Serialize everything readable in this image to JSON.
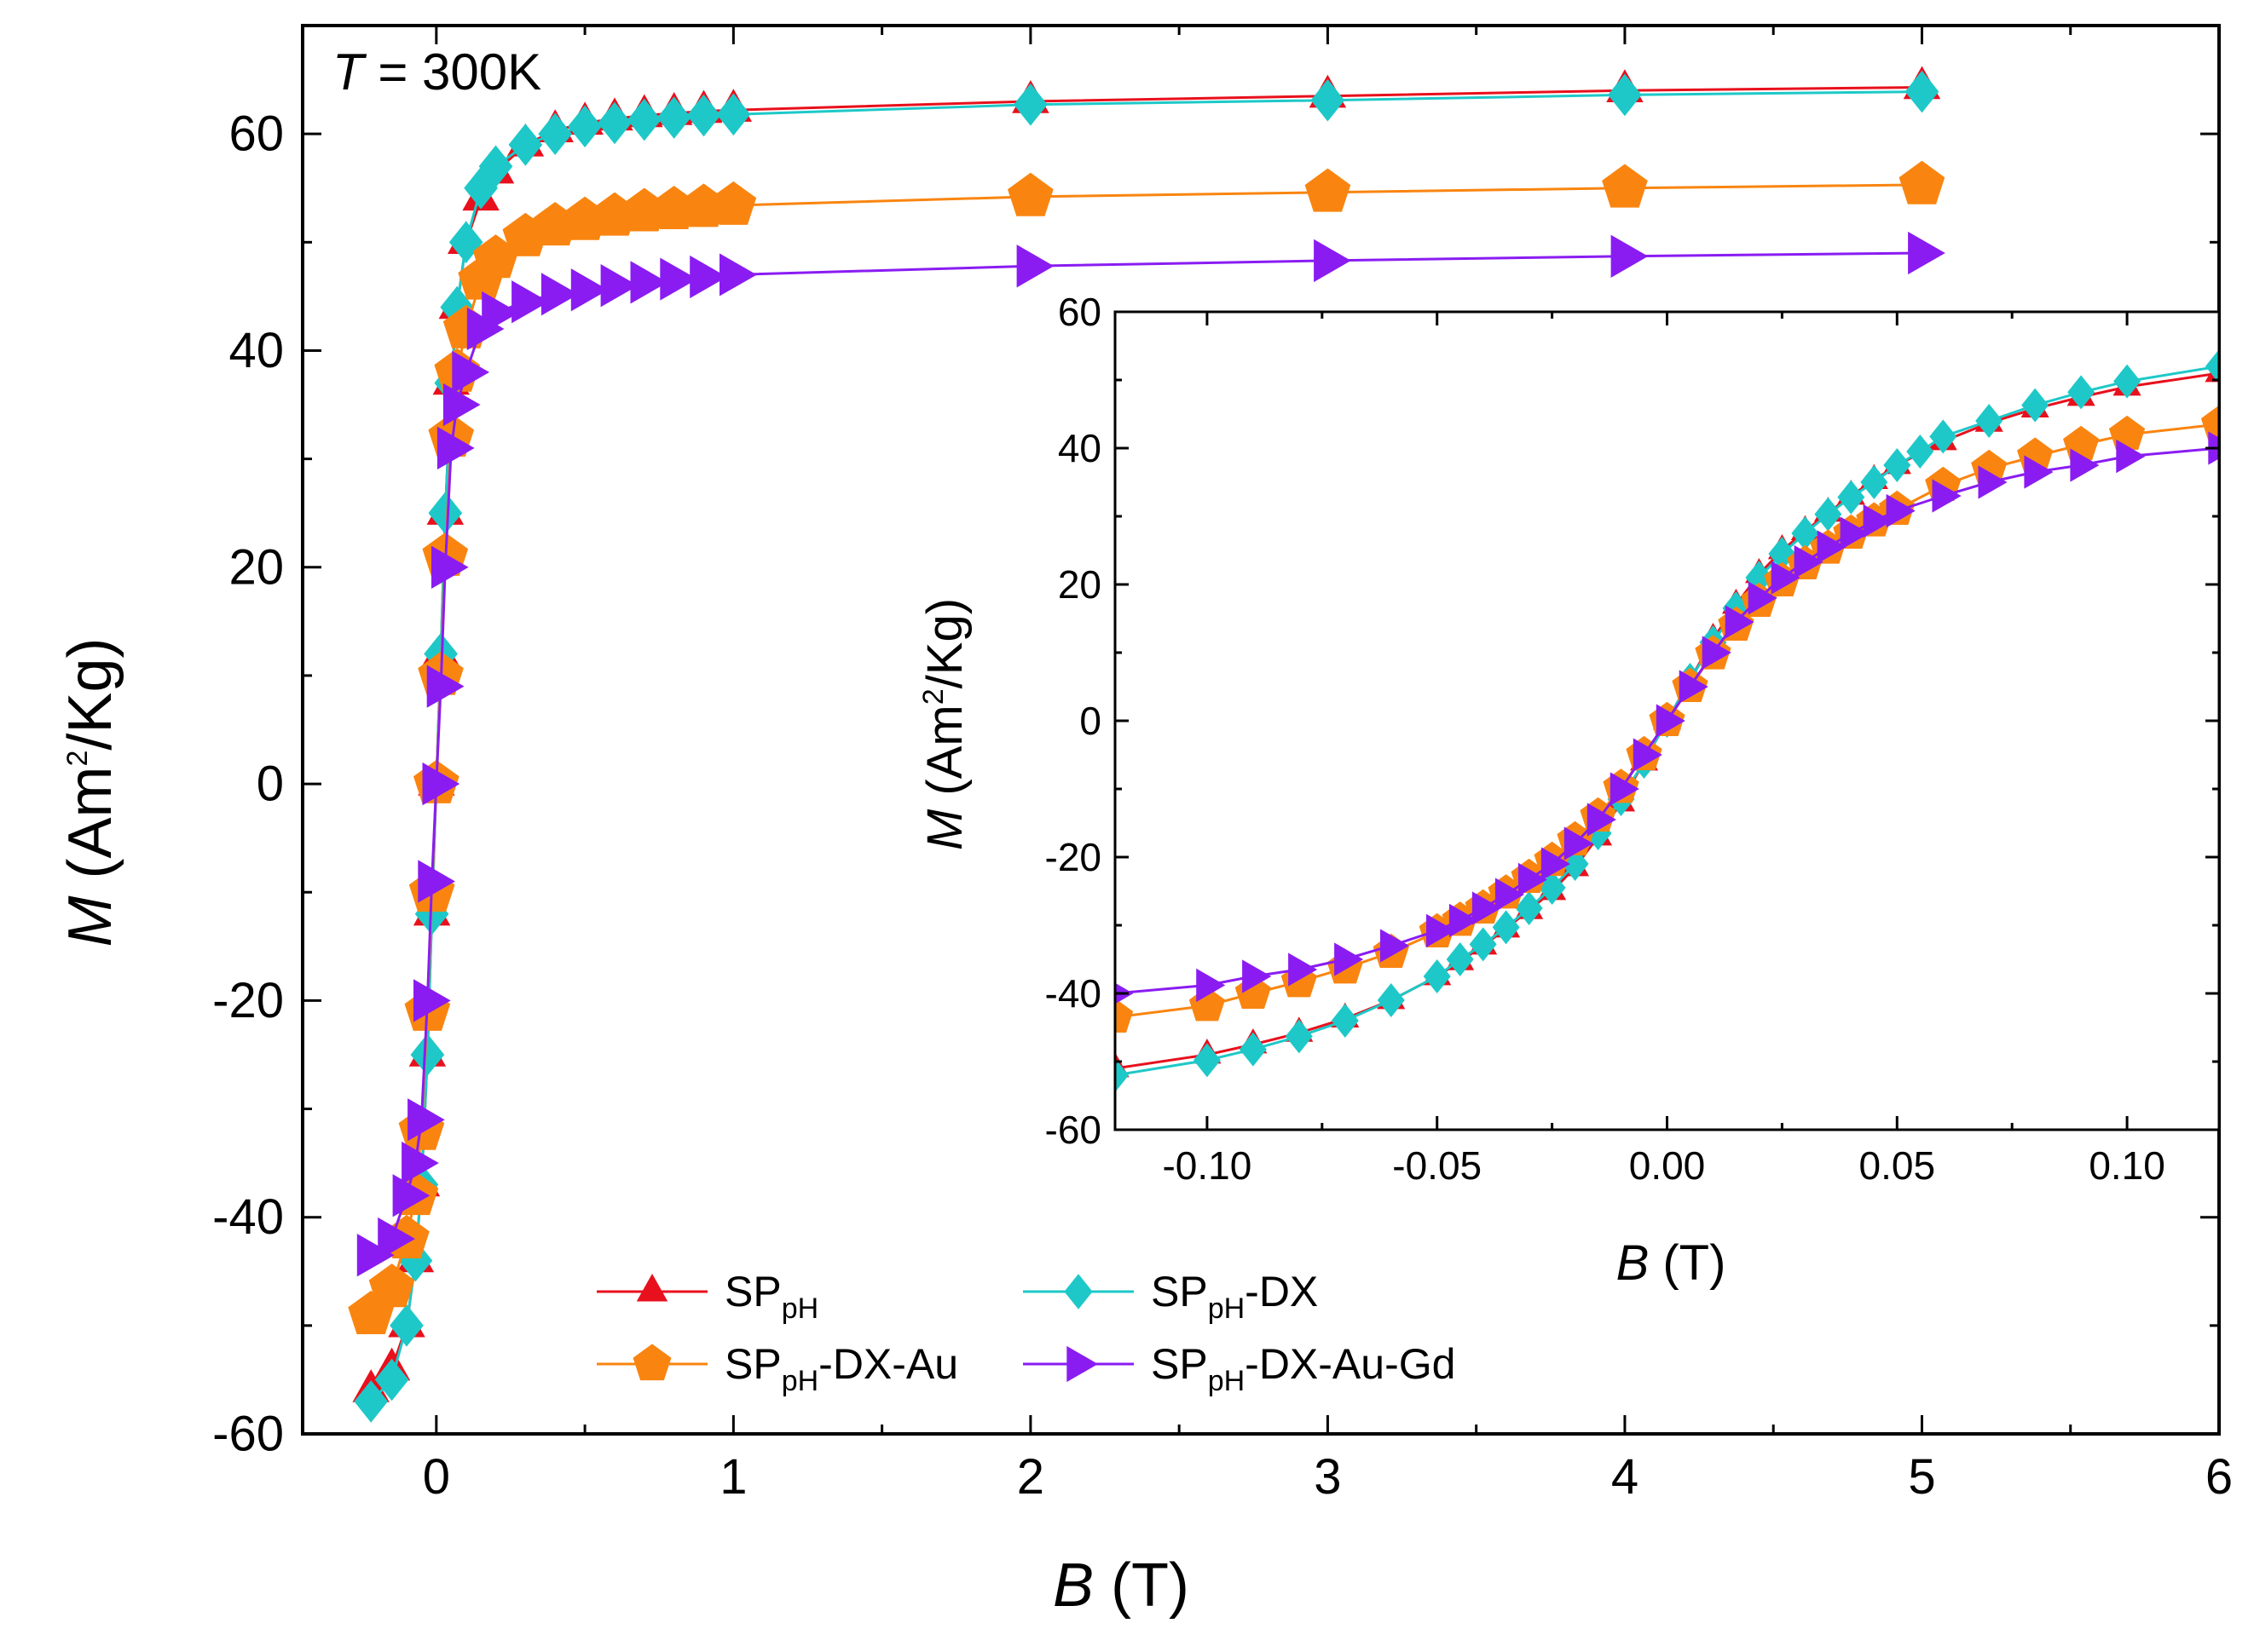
{
  "chart_data": [
    {
      "id": "main",
      "type": "line",
      "title": "",
      "annotation": {
        "symbol": "T",
        "text": " = 300K"
      },
      "xlabel": {
        "symbol": "B",
        "unit": " (T)"
      },
      "ylabel": {
        "symbol": "M",
        "unit_prefix": " (Am",
        "unit_sup": "2",
        "unit_suffix": "/Kg)"
      },
      "xlim": [
        -0.45,
        6
      ],
      "ylim": [
        -60,
        70
      ],
      "xticks": [
        0,
        1,
        2,
        3,
        4,
        5,
        6
      ],
      "yticks": [
        -60,
        -40,
        -20,
        0,
        20,
        40,
        60
      ],
      "legend": {
        "placement": "bottom-center",
        "entries": [
          {
            "main": "SP",
            "sub": "pH",
            "suffix": ""
          },
          {
            "main": "SP",
            "sub": "pH",
            "suffix": "-DX"
          },
          {
            "main": "SP",
            "sub": "pH",
            "suffix": "-DX-Au"
          },
          {
            "main": "SP",
            "sub": "pH",
            "suffix": "-DX-Au-Gd"
          }
        ]
      },
      "series": [
        {
          "name": "SPpH",
          "color": "#e8101c",
          "marker": "triangle-up",
          "ms": 1.0,
          "points": [
            [
              -0.22,
              -56
            ],
            [
              -0.15,
              -54
            ],
            [
              -0.1,
              -50
            ],
            [
              -0.07,
              -44
            ],
            [
              -0.05,
              -37
            ],
            [
              -0.03,
              -25
            ],
            [
              -0.015,
              -12
            ],
            [
              0,
              0
            ],
            [
              0.015,
              12
            ],
            [
              0.03,
              25
            ],
            [
              0.05,
              37
            ],
            [
              0.07,
              44
            ],
            [
              0.1,
              50
            ],
            [
              0.15,
              54
            ],
            [
              0.2,
              56.5
            ],
            [
              0.3,
              59
            ],
            [
              0.4,
              60.3
            ],
            [
              0.5,
              61
            ],
            [
              0.6,
              61.4
            ],
            [
              0.7,
              61.7
            ],
            [
              0.8,
              61.9
            ],
            [
              0.9,
              62.1
            ],
            [
              1,
              62.2
            ],
            [
              2,
              63
            ],
            [
              3,
              63.5
            ],
            [
              4,
              64
            ],
            [
              5,
              64.3
            ]
          ]
        },
        {
          "name": "SPpH-DX",
          "color": "#1ec8c8",
          "marker": "diamond",
          "ms": 1.0,
          "points": [
            [
              -0.22,
              -57
            ],
            [
              -0.15,
              -55
            ],
            [
              -0.1,
              -50
            ],
            [
              -0.07,
              -44
            ],
            [
              -0.05,
              -37
            ],
            [
              -0.03,
              -25
            ],
            [
              -0.015,
              -12
            ],
            [
              0,
              0
            ],
            [
              0.015,
              12
            ],
            [
              0.03,
              25
            ],
            [
              0.05,
              37
            ],
            [
              0.07,
              44
            ],
            [
              0.1,
              50
            ],
            [
              0.15,
              55
            ],
            [
              0.2,
              57
            ],
            [
              0.3,
              59
            ],
            [
              0.4,
              60
            ],
            [
              0.5,
              60.7
            ],
            [
              0.6,
              61
            ],
            [
              0.7,
              61.3
            ],
            [
              0.8,
              61.5
            ],
            [
              0.9,
              61.7
            ],
            [
              1,
              61.8
            ],
            [
              2,
              62.7
            ],
            [
              3,
              63.1
            ],
            [
              4,
              63.6
            ],
            [
              5,
              63.9
            ]
          ]
        },
        {
          "name": "SPpH-DX-Au",
          "color": "#f98510",
          "marker": "pentagon",
          "ms": 1.15,
          "points": [
            [
              -0.22,
              -49
            ],
            [
              -0.15,
              -46.5
            ],
            [
              -0.1,
              -42
            ],
            [
              -0.07,
              -38
            ],
            [
              -0.05,
              -32
            ],
            [
              -0.03,
              -21
            ],
            [
              -0.015,
              -10
            ],
            [
              0,
              0
            ],
            [
              0.015,
              10
            ],
            [
              0.03,
              21
            ],
            [
              0.05,
              32
            ],
            [
              0.07,
              38
            ],
            [
              0.1,
              42
            ],
            [
              0.15,
              46.5
            ],
            [
              0.2,
              48.5
            ],
            [
              0.3,
              50.5
            ],
            [
              0.4,
              51.5
            ],
            [
              0.5,
              52
            ],
            [
              0.6,
              52.4
            ],
            [
              0.7,
              52.8
            ],
            [
              0.8,
              53
            ],
            [
              0.9,
              53.2
            ],
            [
              1,
              53.4
            ],
            [
              2,
              54.2
            ],
            [
              3,
              54.6
            ],
            [
              4,
              55
            ],
            [
              5,
              55.3
            ]
          ]
        },
        {
          "name": "SPpH-DX-Au-Gd",
          "color": "#8a1cf2",
          "marker": "triangle-right",
          "ms": 1.1,
          "points": [
            [
              -0.22,
              -43.5
            ],
            [
              -0.15,
              -42
            ],
            [
              -0.1,
              -38
            ],
            [
              -0.07,
              -35
            ],
            [
              -0.05,
              -31
            ],
            [
              -0.03,
              -20
            ],
            [
              -0.015,
              -9
            ],
            [
              0,
              0
            ],
            [
              0.015,
              9
            ],
            [
              0.03,
              20
            ],
            [
              0.05,
              31
            ],
            [
              0.07,
              35
            ],
            [
              0.1,
              38
            ],
            [
              0.15,
              42
            ],
            [
              0.2,
              43.5
            ],
            [
              0.3,
              44.5
            ],
            [
              0.4,
              45.2
            ],
            [
              0.5,
              45.6
            ],
            [
              0.6,
              46
            ],
            [
              0.7,
              46.3
            ],
            [
              0.8,
              46.6
            ],
            [
              0.9,
              46.8
            ],
            [
              1,
              47
            ],
            [
              2,
              47.8
            ],
            [
              3,
              48.3
            ],
            [
              4,
              48.7
            ],
            [
              5,
              49
            ]
          ]
        }
      ]
    },
    {
      "id": "inset",
      "type": "line",
      "title": "",
      "xlabel": {
        "symbol": "B",
        "unit": " (T)"
      },
      "ylabel": {
        "symbol": "M",
        "unit_prefix": " (Am",
        "unit_sup": "2",
        "unit_suffix": "/Kg)"
      },
      "xlim": [
        -0.12,
        0.12
      ],
      "ylim": [
        -60,
        60
      ],
      "xticks": [
        -0.1,
        -0.05,
        0,
        0.05,
        0.1
      ],
      "xticklabels": [
        "-0.10",
        "-0.05",
        "0.00",
        "0.05",
        "0.10"
      ],
      "yticks": [
        -60,
        -40,
        -20,
        0,
        20,
        40,
        60
      ],
      "series": [
        {
          "name": "SPpH",
          "color": "#e8101c",
          "marker": "triangle-up",
          "ms": 0.75,
          "points": [
            [
              -0.12,
              -51
            ],
            [
              -0.1,
              -49
            ],
            [
              -0.09,
              -47.5
            ],
            [
              -0.08,
              -45.8
            ],
            [
              -0.07,
              -43.7
            ],
            [
              -0.06,
              -41
            ],
            [
              -0.05,
              -37.5
            ],
            [
              -0.045,
              -35.3
            ],
            [
              -0.04,
              -33
            ],
            [
              -0.035,
              -30.5
            ],
            [
              -0.03,
              -27.8
            ],
            [
              -0.025,
              -25
            ],
            [
              -0.02,
              -21.5
            ],
            [
              -0.015,
              -17
            ],
            [
              -0.01,
              -12
            ],
            [
              -0.005,
              -6
            ],
            [
              0,
              0
            ],
            [
              0.005,
              6
            ],
            [
              0.01,
              12
            ],
            [
              0.015,
              17
            ],
            [
              0.02,
              21.5
            ],
            [
              0.025,
              25
            ],
            [
              0.03,
              27.8
            ],
            [
              0.035,
              30.5
            ],
            [
              0.04,
              33
            ],
            [
              0.045,
              35.3
            ],
            [
              0.05,
              37.5
            ],
            [
              0.06,
              41
            ],
            [
              0.07,
              43.7
            ],
            [
              0.08,
              45.8
            ],
            [
              0.09,
              47.5
            ],
            [
              0.1,
              49
            ],
            [
              0.12,
              51
            ]
          ]
        },
        {
          "name": "SPpH-DX",
          "color": "#1ec8c8",
          "marker": "diamond",
          "ms": 0.8,
          "points": [
            [
              -0.12,
              -52
            ],
            [
              -0.1,
              -49.8
            ],
            [
              -0.09,
              -48.2
            ],
            [
              -0.08,
              -46.3
            ],
            [
              -0.07,
              -44
            ],
            [
              -0.06,
              -41
            ],
            [
              -0.05,
              -37.5
            ],
            [
              -0.045,
              -35
            ],
            [
              -0.04,
              -32.8
            ],
            [
              -0.035,
              -30.3
            ],
            [
              -0.03,
              -27.5
            ],
            [
              -0.025,
              -24.5
            ],
            [
              -0.02,
              -21
            ],
            [
              -0.015,
              -16.5
            ],
            [
              -0.01,
              -11.5
            ],
            [
              -0.005,
              -6
            ],
            [
              0,
              0
            ],
            [
              0.005,
              6
            ],
            [
              0.01,
              11.5
            ],
            [
              0.015,
              16.5
            ],
            [
              0.02,
              21
            ],
            [
              0.025,
              24.5
            ],
            [
              0.03,
              27.5
            ],
            [
              0.035,
              30.3
            ],
            [
              0.04,
              32.8
            ],
            [
              0.045,
              35
            ],
            [
              0.05,
              37.5
            ],
            [
              0.055,
              39.5
            ],
            [
              0.06,
              41.7
            ],
            [
              0.07,
              44
            ],
            [
              0.08,
              46.3
            ],
            [
              0.09,
              48.2
            ],
            [
              0.1,
              49.8
            ],
            [
              0.12,
              52
            ]
          ]
        },
        {
          "name": "SPpH-DX-Au",
          "color": "#f98510",
          "marker": "pentagon",
          "ms": 0.9,
          "points": [
            [
              -0.12,
              -43.5
            ],
            [
              -0.1,
              -41.8
            ],
            [
              -0.09,
              -40
            ],
            [
              -0.08,
              -38.3
            ],
            [
              -0.07,
              -36.3
            ],
            [
              -0.06,
              -34
            ],
            [
              -0.05,
              -31
            ],
            [
              -0.045,
              -29.3
            ],
            [
              -0.04,
              -27.5
            ],
            [
              -0.035,
              -25.3
            ],
            [
              -0.03,
              -23
            ],
            [
              -0.025,
              -20.5
            ],
            [
              -0.02,
              -17.5
            ],
            [
              -0.015,
              -14
            ],
            [
              -0.01,
              -9.8
            ],
            [
              -0.005,
              -5
            ],
            [
              0,
              0
            ],
            [
              0.005,
              5
            ],
            [
              0.01,
              9.8
            ],
            [
              0.015,
              14
            ],
            [
              0.02,
              17.5
            ],
            [
              0.025,
              20.5
            ],
            [
              0.03,
              23
            ],
            [
              0.035,
              25.3
            ],
            [
              0.04,
              27.5
            ],
            [
              0.045,
              29.3
            ],
            [
              0.05,
              31
            ],
            [
              0.06,
              34.5
            ],
            [
              0.07,
              37
            ],
            [
              0.08,
              38.8
            ],
            [
              0.09,
              40.5
            ],
            [
              0.1,
              42
            ],
            [
              0.12,
              43.5
            ]
          ]
        },
        {
          "name": "SPpH-DX-Au-Gd",
          "color": "#8a1cf2",
          "marker": "triangle-right",
          "ms": 0.85,
          "points": [
            [
              -0.12,
              -40
            ],
            [
              -0.1,
              -38.8
            ],
            [
              -0.09,
              -37.5
            ],
            [
              -0.08,
              -36.5
            ],
            [
              -0.07,
              -35
            ],
            [
              -0.06,
              -33
            ],
            [
              -0.05,
              -30.8
            ],
            [
              -0.045,
              -29.3
            ],
            [
              -0.04,
              -27.5
            ],
            [
              -0.035,
              -25.5
            ],
            [
              -0.03,
              -23.3
            ],
            [
              -0.025,
              -21
            ],
            [
              -0.02,
              -18
            ],
            [
              -0.015,
              -14.5
            ],
            [
              -0.01,
              -10
            ],
            [
              -0.005,
              -5
            ],
            [
              0,
              0
            ],
            [
              0.005,
              5
            ],
            [
              0.01,
              10
            ],
            [
              0.015,
              14.5
            ],
            [
              0.02,
              18
            ],
            [
              0.025,
              21
            ],
            [
              0.03,
              23.3
            ],
            [
              0.035,
              25.5
            ],
            [
              0.04,
              27.5
            ],
            [
              0.045,
              29.3
            ],
            [
              0.05,
              30.8
            ],
            [
              0.06,
              33
            ],
            [
              0.07,
              35
            ],
            [
              0.08,
              36.5
            ],
            [
              0.09,
              37.5
            ],
            [
              0.1,
              38.8
            ],
            [
              0.12,
              40
            ]
          ]
        }
      ]
    }
  ]
}
